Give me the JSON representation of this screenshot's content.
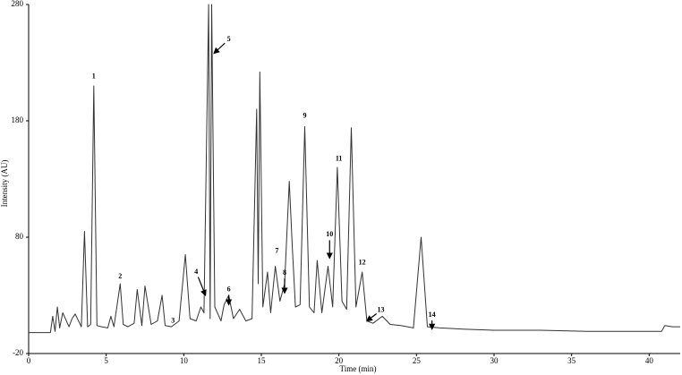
{
  "chart_data": {
    "type": "line",
    "xlabel": "Time (min)",
    "ylabel": "Intensity (AU)",
    "x": [
      0,
      1.4,
      1.55,
      1.7,
      1.85,
      2.0,
      2.2,
      2.6,
      2.8,
      3.0,
      3.4,
      3.6,
      3.8,
      4.0,
      4.2,
      4.4,
      4.7,
      5.1,
      5.3,
      5.5,
      5.9,
      6.1,
      6.4,
      6.8,
      7.0,
      7.3,
      7.5,
      7.9,
      8.3,
      8.6,
      8.8,
      9.2,
      9.7,
      10.1,
      10.4,
      10.8,
      11.1,
      11.3,
      11.6,
      11.7,
      11.8,
      12.0,
      12.4,
      12.6,
      12.9,
      13.2,
      13.6,
      14.0,
      14.4,
      14.7,
      14.8,
      14.9,
      15.1,
      15.4,
      15.6,
      15.9,
      16.2,
      16.5,
      16.8,
      17.0,
      17.2,
      17.5,
      17.8,
      18.1,
      18.4,
      18.6,
      18.9,
      19.3,
      19.6,
      19.9,
      20.2,
      20.5,
      20.8,
      21.1,
      21.5,
      21.8,
      22.2,
      22.8,
      23.3,
      24.0,
      24.8,
      25.3,
      25.7,
      26.5,
      28,
      30,
      33,
      36,
      39,
      40.8,
      41.0,
      41.5,
      42
    ],
    "series": [
      {
        "color": "#333333",
        "values": [
          -2,
          -2,
          12,
          -1,
          20,
          2,
          15,
          3,
          10,
          14,
          3,
          85,
          3,
          5,
          210,
          4,
          3,
          2,
          12,
          3,
          40,
          5,
          3,
          6,
          35,
          4,
          38,
          5,
          8,
          30,
          4,
          3,
          8,
          65,
          10,
          8,
          20,
          15,
          280,
          10,
          280,
          20,
          8,
          22,
          30,
          10,
          18,
          8,
          10,
          190,
          40,
          222,
          20,
          50,
          15,
          55,
          25,
          40,
          128,
          70,
          20,
          22,
          175,
          20,
          15,
          60,
          15,
          55,
          20,
          140,
          25,
          18,
          174,
          20,
          50,
          8,
          6,
          12,
          5,
          4,
          2,
          80,
          3,
          2,
          1,
          0,
          0,
          -1,
          -1,
          -1,
          4,
          3,
          3
        ]
      }
    ],
    "xlim": [
      0,
      42
    ],
    "xticks": [
      0,
      5,
      10,
      15,
      20,
      25,
      30,
      35,
      40
    ],
    "ylim": [
      -20,
      280
    ],
    "yticks": [
      -20,
      80,
      180,
      280
    ],
    "annotations": [
      {
        "text": "1",
        "x": 4.2,
        "y": 218
      },
      {
        "text": "2",
        "x": 5.9,
        "y": 46
      },
      {
        "text": "3",
        "x": 9.3,
        "y": 8
      },
      {
        "text": "4",
        "x": 10.8,
        "y": 50,
        "arrow_x": 11.4,
        "arrow_y": 30
      },
      {
        "text": "5",
        "x": 12.9,
        "y": 250,
        "arrow_x": 11.95,
        "arrow_y": 238
      },
      {
        "text": "6",
        "x": 12.9,
        "y": 35,
        "arrow_x": 12.9,
        "arrow_y": 22
      },
      {
        "text": "7",
        "x": 16.0,
        "y": 68
      },
      {
        "text": "8",
        "x": 16.5,
        "y": 49,
        "arrow_x": 16.5,
        "arrow_y": 32
      },
      {
        "text": "9",
        "x": 17.8,
        "y": 184
      },
      {
        "text": "10",
        "x": 19.4,
        "y": 82,
        "arrow_x": 19.4,
        "arrow_y": 62
      },
      {
        "text": "11",
        "x": 20.0,
        "y": 147
      },
      {
        "text": "12",
        "x": 21.5,
        "y": 58
      },
      {
        "text": "13",
        "x": 22.7,
        "y": 17,
        "arrow_x": 21.8,
        "arrow_y": 8
      },
      {
        "text": "14",
        "x": 26.0,
        "y": 13,
        "arrow_x": 26.0,
        "arrow_y": 1
      }
    ]
  }
}
